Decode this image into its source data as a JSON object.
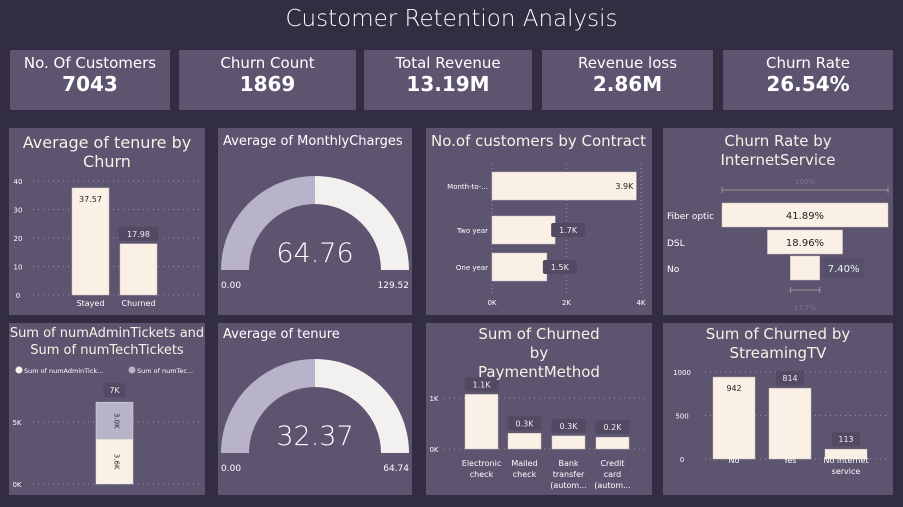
{
  "title": "Customer Retention Analysis",
  "kpis": [
    {
      "label": "No. Of Customers",
      "value": "7043"
    },
    {
      "label": "Churn Count",
      "value": "1869"
    },
    {
      "label": "Total Revenue",
      "value": "13.19M"
    },
    {
      "label": "Revenue loss",
      "value": "2.86M"
    },
    {
      "label": "Churn Rate",
      "value": "26.54%"
    }
  ],
  "colors": {
    "background": "#332d41",
    "panel": "#5d5470",
    "primary": "#faf0e6",
    "secondary": "#b8b3c8",
    "gauge_remaining": "#f2f1f0"
  },
  "chart_data": [
    {
      "id": "tenure_by_churn",
      "type": "bar",
      "title": "Average of tenure by Churn",
      "categories": [
        "Stayed",
        "Churned"
      ],
      "values": [
        37.57,
        17.98
      ],
      "labels": [
        "37.57",
        "17.98"
      ],
      "ylim": [
        0,
        40
      ],
      "yticks": [
        "0",
        "10",
        "20",
        "30",
        "40"
      ],
      "grid": true
    },
    {
      "id": "monthly_charges_gauge",
      "type": "gauge",
      "title": "Average of MonthlyCharges",
      "value": 64.76,
      "value_label": "64.76",
      "min": 0,
      "max": 129.52,
      "min_label": "0.00",
      "max_label": "129.52"
    },
    {
      "id": "customers_by_contract",
      "type": "bar",
      "orientation": "horizontal",
      "title": "No.of customers by Contract",
      "categories": [
        "Month-to-...",
        "Two year",
        "One year"
      ],
      "values": [
        3875,
        1695,
        1473
      ],
      "labels": [
        "3.9K",
        "1.7K",
        "1.5K"
      ],
      "xlim": [
        0,
        4000
      ],
      "xticks": [
        "0K",
        "2K",
        "4K"
      ],
      "grid": true
    },
    {
      "id": "churn_rate_internet",
      "type": "funnel",
      "title": "Churn Rate by InternetService",
      "categories": [
        "Fiber optic",
        "DSL",
        "No"
      ],
      "values": [
        41.89,
        18.96,
        7.4
      ],
      "labels": [
        "41.89%",
        "18.96%",
        "7.40%"
      ],
      "top_label": "100%",
      "bottom_label": "17.7%"
    },
    {
      "id": "tickets",
      "type": "stacked_bar",
      "title": "Sum of numAdminTickets and Sum of numTechTickets",
      "legend": [
        "Sum of numAdminTick...",
        "Sum of numTec..."
      ],
      "series": [
        {
          "name": "Sum of numAdminTickets",
          "values": [
            3600
          ],
          "label": "3.6K"
        },
        {
          "name": "Sum of numTechTickets",
          "values": [
            3000
          ],
          "label": "3.0K"
        }
      ],
      "total_label": "7K",
      "ylim": [
        0,
        7000
      ],
      "yticks": [
        "0K",
        "5K"
      ],
      "legend_position": "top-left",
      "grid": true
    },
    {
      "id": "tenure_gauge",
      "type": "gauge",
      "title": "Average of tenure",
      "value": 32.37,
      "value_label": "32.37",
      "min": 0,
      "max": 64.74,
      "min_label": "0.00",
      "max_label": "64.74"
    },
    {
      "id": "churned_by_payment",
      "type": "bar",
      "title": "Sum of Churned by PaymentMethod",
      "categories": [
        [
          "Electronic",
          "check"
        ],
        [
          "Mailed",
          "check"
        ],
        [
          "Bank",
          "transfer",
          "(autom..."
        ],
        [
          "Credit",
          "card",
          "(autom..."
        ]
      ],
      "values": [
        1071,
        308,
        258,
        232
      ],
      "labels": [
        "1.1K",
        "0.3K",
        "0.3K",
        "0.2K"
      ],
      "yticks": [
        "0K",
        "1K"
      ],
      "grid": true
    },
    {
      "id": "churned_by_streaming",
      "type": "bar",
      "title": "Sum of Churned by StreamingTV",
      "categories": [
        [
          "No"
        ],
        [
          "Yes"
        ],
        [
          "No internet",
          "service"
        ]
      ],
      "values": [
        942,
        814,
        113
      ],
      "labels": [
        "942",
        "814",
        "113"
      ],
      "ylim": [
        0,
        1000
      ],
      "yticks": [
        "0",
        "500",
        "1000"
      ],
      "grid": true
    }
  ]
}
